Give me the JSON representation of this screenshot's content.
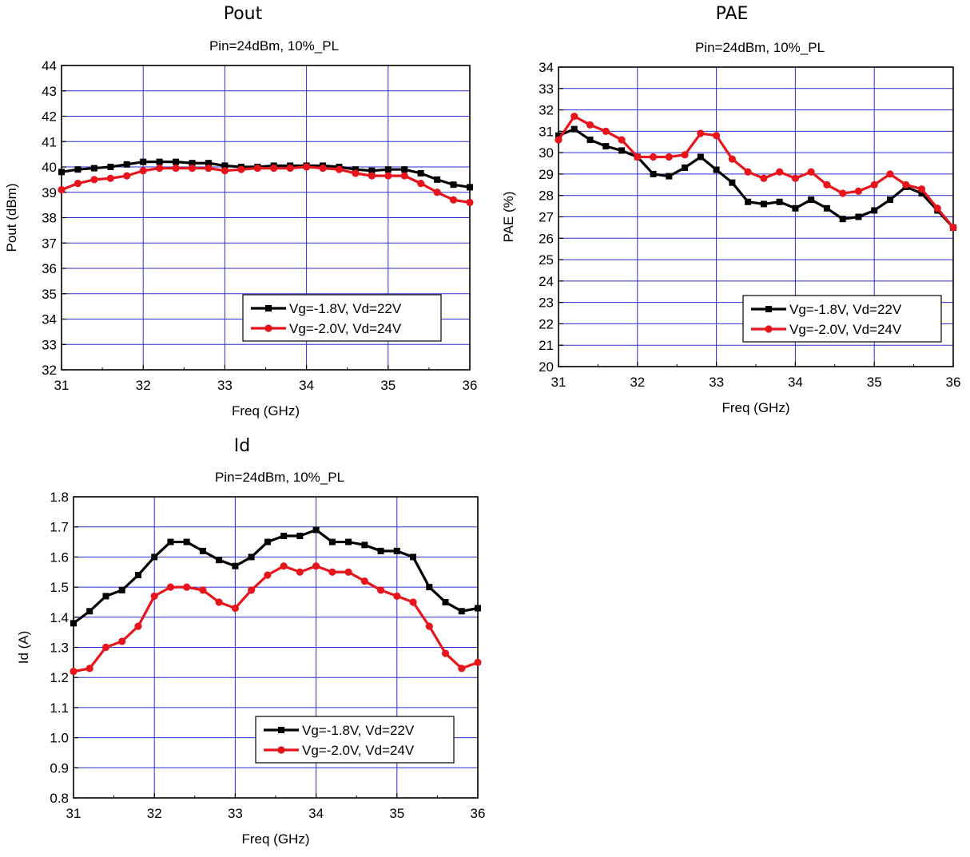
{
  "chart_data": [
    {
      "type": "line",
      "title": "Pout",
      "subtitle": "Pin=24dBm, 10%_PL",
      "xlabel": "Freq (GHz)",
      "ylabel": "Pout (dBm)",
      "xlim": [
        31,
        36
      ],
      "ylim": [
        32,
        44
      ],
      "xticks": [
        31,
        32,
        33,
        34,
        35,
        36
      ],
      "yticks": [
        32,
        33,
        34,
        35,
        36,
        37,
        38,
        39,
        40,
        41,
        42,
        43,
        44
      ],
      "grid": true,
      "legend": "bottom-right",
      "x": [
        31.0,
        31.2,
        31.4,
        31.6,
        31.8,
        32.0,
        32.2,
        32.4,
        32.6,
        32.8,
        33.0,
        33.2,
        33.4,
        33.6,
        33.8,
        34.0,
        34.2,
        34.4,
        34.6,
        34.8,
        35.0,
        35.2,
        35.4,
        35.6,
        35.8,
        36.0
      ],
      "series": [
        {
          "name": "Vg=-1.8V, Vd=22V",
          "color": "#000000",
          "marker": "square",
          "values": [
            39.8,
            39.9,
            39.95,
            40.0,
            40.1,
            40.2,
            40.2,
            40.2,
            40.15,
            40.15,
            40.05,
            40.0,
            40.0,
            40.05,
            40.05,
            40.05,
            40.05,
            40.0,
            39.9,
            39.85,
            39.9,
            39.9,
            39.75,
            39.5,
            39.3,
            39.2
          ]
        },
        {
          "name": "Vg=-2.0V, Vd=24V",
          "color": "#e8141b",
          "marker": "circle",
          "values": [
            39.1,
            39.35,
            39.5,
            39.55,
            39.65,
            39.85,
            39.95,
            39.95,
            39.95,
            39.95,
            39.85,
            39.9,
            39.95,
            39.95,
            39.95,
            40.0,
            39.95,
            39.9,
            39.75,
            39.65,
            39.65,
            39.65,
            39.35,
            39.0,
            38.7,
            38.6
          ]
        }
      ]
    },
    {
      "type": "line",
      "title": "PAE",
      "subtitle": "Pin=24dBm, 10%_PL",
      "xlabel": "Freq (GHz)",
      "ylabel": "PAE (%)",
      "xlim": [
        31,
        36
      ],
      "ylim": [
        20,
        34
      ],
      "xticks": [
        31,
        32,
        33,
        34,
        35,
        36
      ],
      "yticks": [
        20,
        21,
        22,
        23,
        24,
        25,
        26,
        27,
        28,
        29,
        30,
        31,
        32,
        33,
        34
      ],
      "grid": true,
      "legend": "bottom-right",
      "x": [
        31.0,
        31.2,
        31.4,
        31.6,
        31.8,
        32.0,
        32.2,
        32.4,
        32.6,
        32.8,
        33.0,
        33.2,
        33.4,
        33.6,
        33.8,
        34.0,
        34.2,
        34.4,
        34.6,
        34.8,
        35.0,
        35.2,
        35.4,
        35.6,
        35.8,
        36.0
      ],
      "series": [
        {
          "name": "Vg=-1.8V, Vd=22V",
          "color": "#000000",
          "marker": "square",
          "values": [
            30.8,
            31.1,
            30.6,
            30.3,
            30.1,
            29.8,
            29.0,
            28.9,
            29.3,
            29.8,
            29.2,
            28.6,
            27.7,
            27.6,
            27.7,
            27.4,
            27.8,
            27.4,
            26.9,
            27.0,
            27.3,
            27.8,
            28.4,
            28.1,
            27.3,
            26.5
          ]
        },
        {
          "name": "Vg=-2.0V, Vd=24V",
          "color": "#e8141b",
          "marker": "circle",
          "values": [
            30.6,
            31.7,
            31.3,
            31.0,
            30.6,
            29.8,
            29.8,
            29.8,
            29.9,
            30.9,
            30.8,
            29.7,
            29.1,
            28.8,
            29.1,
            28.8,
            29.1,
            28.5,
            28.1,
            28.2,
            28.5,
            29.0,
            28.5,
            28.3,
            27.4,
            26.5
          ]
        }
      ]
    },
    {
      "type": "line",
      "title": "Id",
      "subtitle": "Pin=24dBm, 10%_PL",
      "xlabel": "Freq (GHz)",
      "ylabel": "Id (A)",
      "xlim": [
        31,
        36
      ],
      "ylim": [
        0.8,
        1.8
      ],
      "xticks": [
        31,
        32,
        33,
        34,
        35,
        36
      ],
      "yticks": [
        "0.8",
        "0.9",
        "1.0",
        "1.1",
        "1.2",
        "1.3",
        "1.4",
        "1.5",
        "1.6",
        "1.7",
        "1.8"
      ],
      "grid": true,
      "legend": "bottom-right",
      "x": [
        31.0,
        31.2,
        31.4,
        31.6,
        31.8,
        32.0,
        32.2,
        32.4,
        32.6,
        32.8,
        33.0,
        33.2,
        33.4,
        33.6,
        33.8,
        34.0,
        34.2,
        34.4,
        34.6,
        34.8,
        35.0,
        35.2,
        35.4,
        35.6,
        35.8,
        36.0
      ],
      "series": [
        {
          "name": "Vg=-1.8V, Vd=22V",
          "color": "#000000",
          "marker": "square",
          "values": [
            1.38,
            1.42,
            1.47,
            1.49,
            1.54,
            1.6,
            1.65,
            1.65,
            1.62,
            1.59,
            1.57,
            1.6,
            1.65,
            1.67,
            1.67,
            1.69,
            1.65,
            1.65,
            1.64,
            1.62,
            1.62,
            1.6,
            1.5,
            1.45,
            1.42,
            1.43
          ]
        },
        {
          "name": "Vg=-2.0V, Vd=24V",
          "color": "#e8141b",
          "marker": "circle",
          "values": [
            1.22,
            1.23,
            1.3,
            1.32,
            1.37,
            1.47,
            1.5,
            1.5,
            1.49,
            1.45,
            1.43,
            1.49,
            1.54,
            1.57,
            1.55,
            1.57,
            1.55,
            1.55,
            1.52,
            1.49,
            1.47,
            1.45,
            1.37,
            1.28,
            1.23,
            1.25
          ]
        }
      ]
    }
  ]
}
